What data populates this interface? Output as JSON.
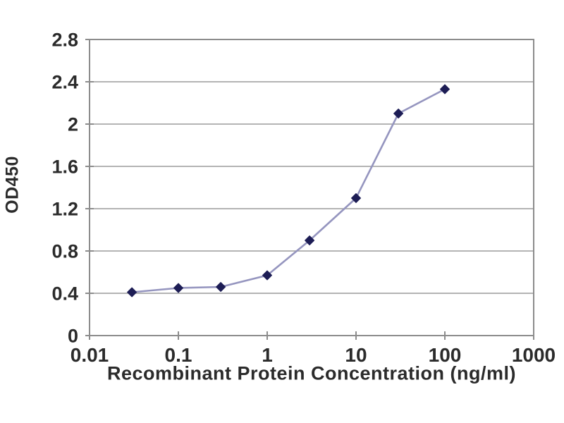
{
  "chart_data": {
    "type": "line",
    "title": "",
    "xlabel": "Recombinant Protein Concentration (ng/ml)",
    "ylabel": "OD450",
    "x_scale": "log",
    "y_scale": "linear",
    "xlim": [
      0.01,
      1000
    ],
    "ylim": [
      0,
      2.8
    ],
    "x_ticks": [
      0.01,
      0.1,
      1,
      10,
      100,
      1000
    ],
    "x_tick_labels": [
      "0.01",
      "0.1",
      "1",
      "10",
      "100",
      "1000"
    ],
    "y_ticks": [
      0,
      0.4,
      0.8,
      1.2,
      1.6,
      2,
      2.4,
      2.8
    ],
    "y_tick_labels": [
      "0",
      "0.4",
      "0.8",
      "1.2",
      "1.6",
      "2",
      "2.4",
      "2.8"
    ],
    "grid": "horizontal",
    "legend": "none",
    "series": [
      {
        "name": "OD450",
        "marker": "diamond",
        "x": [
          0.03,
          0.1,
          0.3,
          1,
          3,
          10,
          30,
          100
        ],
        "y": [
          0.41,
          0.45,
          0.46,
          0.57,
          0.9,
          1.3,
          2.1,
          2.33
        ]
      }
    ],
    "colors": {
      "background": "#ffffff",
      "frame": "#8c8c8c",
      "gridline": "#aaaaaa",
      "line": "#9595bf",
      "marker": "#1d1d55",
      "text": "#2b2b2b"
    }
  }
}
